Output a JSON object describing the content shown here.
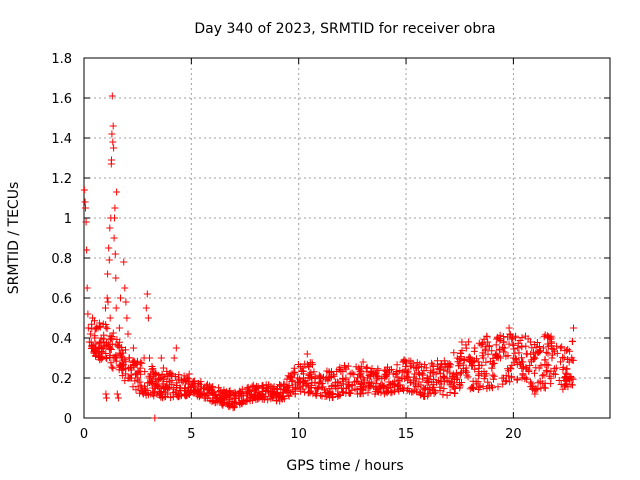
{
  "chart_data": {
    "type": "scatter",
    "title": "Day 340 of 2023, SRMTID for receiver obra",
    "xlabel": "GPS time / hours",
    "ylabel": "SRMTID / TECUs",
    "xlim": [
      0,
      24.5
    ],
    "ylim": [
      0,
      1.8
    ],
    "xticks": [
      0,
      5,
      10,
      15,
      20
    ],
    "xtick_labels": [
      "0",
      "5",
      "10",
      "15",
      "20"
    ],
    "yticks": [
      0,
      0.2,
      0.4,
      0.6,
      0.8,
      1,
      1.2,
      1.4,
      1.6,
      1.8
    ],
    "ytick_labels": [
      "0",
      "0.2",
      "0.4",
      "0.6",
      "0.8",
      "1",
      "1.2",
      "1.4",
      "1.6",
      "1.8"
    ],
    "grid": true,
    "marker": "+",
    "color": "#ff0000",
    "series": [
      {
        "name": "SRMTID",
        "points": [
          [
            0.02,
            1.14
          ],
          [
            0.05,
            1.08
          ],
          [
            0.07,
            1.05
          ],
          [
            0.1,
            0.98
          ],
          [
            0.12,
            0.84
          ],
          [
            0.15,
            0.65
          ],
          [
            0.18,
            0.52
          ],
          [
            0.2,
            0.45
          ],
          [
            0.25,
            0.38
          ],
          [
            0.3,
            0.42
          ],
          [
            0.35,
            0.36
          ],
          [
            0.4,
            0.5
          ],
          [
            0.45,
            0.33
          ],
          [
            0.5,
            0.4
          ],
          [
            0.55,
            0.37
          ],
          [
            0.6,
            0.32
          ],
          [
            0.65,
            0.45
          ],
          [
            0.7,
            0.35
          ],
          [
            0.75,
            0.38
          ],
          [
            0.8,
            0.4
          ],
          [
            0.85,
            0.3
          ],
          [
            0.9,
            0.47
          ],
          [
            0.95,
            0.36
          ],
          [
            1.0,
            0.55
          ],
          [
            1.02,
            0.12
          ],
          [
            1.05,
            0.1
          ],
          [
            1.08,
            0.6
          ],
          [
            1.1,
            0.72
          ],
          [
            1.12,
            0.58
          ],
          [
            1.15,
            0.85
          ],
          [
            1.18,
            0.79
          ],
          [
            1.2,
            0.95
          ],
          [
            1.22,
            0.5
          ],
          [
            1.25,
            1.0
          ],
          [
            1.27,
            1.27
          ],
          [
            1.28,
            1.29
          ],
          [
            1.3,
            1.42
          ],
          [
            1.32,
            1.61
          ],
          [
            1.34,
            1.38
          ],
          [
            1.36,
            1.46
          ],
          [
            1.38,
            1.35
          ],
          [
            1.4,
            0.9
          ],
          [
            1.42,
            1.0
          ],
          [
            1.44,
            1.05
          ],
          [
            1.46,
            0.82
          ],
          [
            1.48,
            0.7
          ],
          [
            1.5,
            0.55
          ],
          [
            1.52,
            1.13
          ],
          [
            1.55,
            0.12
          ],
          [
            1.6,
            0.1
          ],
          [
            1.65,
            0.45
          ],
          [
            1.7,
            0.6
          ],
          [
            1.75,
            0.3
          ],
          [
            1.8,
            0.25
          ],
          [
            1.85,
            0.78
          ],
          [
            1.9,
            0.65
          ],
          [
            1.95,
            0.58
          ],
          [
            2.0,
            0.5
          ],
          [
            2.05,
            0.42
          ],
          [
            2.1,
            0.3
          ],
          [
            2.15,
            0.2
          ],
          [
            2.2,
            0.25
          ],
          [
            2.3,
            0.35
          ],
          [
            2.4,
            0.22
          ],
          [
            2.5,
            0.2
          ],
          [
            2.6,
            0.18
          ],
          [
            2.7,
            0.15
          ],
          [
            2.8,
            0.3
          ],
          [
            2.9,
            0.55
          ],
          [
            2.95,
            0.62
          ],
          [
            3.0,
            0.5
          ],
          [
            3.05,
            0.3
          ],
          [
            3.1,
            0.22
          ],
          [
            3.15,
            0.18
          ],
          [
            3.2,
            0.15
          ],
          [
            3.3,
            0.0
          ],
          [
            3.4,
            0.12
          ],
          [
            3.5,
            0.2
          ],
          [
            3.6,
            0.3
          ],
          [
            3.7,
            0.25
          ],
          [
            3.8,
            0.15
          ],
          [
            3.9,
            0.12
          ],
          [
            4.0,
            0.18
          ],
          [
            4.1,
            0.22
          ],
          [
            4.2,
            0.3
          ],
          [
            4.3,
            0.35
          ],
          [
            4.4,
            0.2
          ],
          [
            4.5,
            0.15
          ],
          [
            4.6,
            0.18
          ],
          [
            4.7,
            0.12
          ],
          [
            4.8,
            0.2
          ],
          [
            4.9,
            0.22
          ],
          [
            5.0,
            0.16
          ],
          [
            5.2,
            0.14
          ],
          [
            5.4,
            0.12
          ],
          [
            5.6,
            0.1
          ],
          [
            5.8,
            0.14
          ],
          [
            6.0,
            0.12
          ],
          [
            6.2,
            0.08
          ],
          [
            6.4,
            0.1
          ],
          [
            6.6,
            0.12
          ],
          [
            6.8,
            0.06
          ],
          [
            7.0,
            0.08
          ],
          [
            7.2,
            0.1
          ],
          [
            7.4,
            0.12
          ],
          [
            7.6,
            0.15
          ],
          [
            7.8,
            0.12
          ],
          [
            8.0,
            0.14
          ],
          [
            8.2,
            0.12
          ],
          [
            8.4,
            0.1
          ],
          [
            8.6,
            0.13
          ],
          [
            8.8,
            0.15
          ],
          [
            9.0,
            0.12
          ],
          [
            9.2,
            0.1
          ],
          [
            9.4,
            0.14
          ],
          [
            9.6,
            0.2
          ],
          [
            9.8,
            0.22
          ],
          [
            10.0,
            0.18
          ],
          [
            10.2,
            0.25
          ],
          [
            10.4,
            0.32
          ],
          [
            10.6,
            0.2
          ],
          [
            10.8,
            0.15
          ],
          [
            11.0,
            0.18
          ],
          [
            11.2,
            0.14
          ],
          [
            11.4,
            0.2
          ],
          [
            11.6,
            0.16
          ],
          [
            11.8,
            0.18
          ],
          [
            12.0,
            0.15
          ],
          [
            12.2,
            0.2
          ],
          [
            12.4,
            0.22
          ],
          [
            12.6,
            0.18
          ],
          [
            12.8,
            0.25
          ],
          [
            13.0,
            0.28
          ],
          [
            13.2,
            0.2
          ],
          [
            13.4,
            0.18
          ],
          [
            13.6,
            0.22
          ],
          [
            13.8,
            0.15
          ],
          [
            14.0,
            0.2
          ],
          [
            14.2,
            0.18
          ],
          [
            14.4,
            0.22
          ],
          [
            14.6,
            0.16
          ],
          [
            14.8,
            0.2
          ],
          [
            15.0,
            0.24
          ],
          [
            15.2,
            0.26
          ],
          [
            15.4,
            0.22
          ],
          [
            15.6,
            0.18
          ],
          [
            15.8,
            0.15
          ],
          [
            16.0,
            0.2
          ],
          [
            16.2,
            0.18
          ],
          [
            16.4,
            0.22
          ],
          [
            16.6,
            0.25
          ],
          [
            16.8,
            0.2
          ],
          [
            17.0,
            0.18
          ],
          [
            17.2,
            0.22
          ],
          [
            17.4,
            0.2
          ],
          [
            17.6,
            0.38
          ],
          [
            17.8,
            0.25
          ],
          [
            18.0,
            0.3
          ],
          [
            18.2,
            0.35
          ],
          [
            18.4,
            0.22
          ],
          [
            18.6,
            0.3
          ],
          [
            18.8,
            0.38
          ],
          [
            19.0,
            0.25
          ],
          [
            19.2,
            0.32
          ],
          [
            19.4,
            0.3
          ],
          [
            19.6,
            0.35
          ],
          [
            19.8,
            0.45
          ],
          [
            20.0,
            0.3
          ],
          [
            20.2,
            0.35
          ],
          [
            20.4,
            0.28
          ],
          [
            20.6,
            0.32
          ],
          [
            20.8,
            0.38
          ],
          [
            21.0,
            0.12
          ],
          [
            21.2,
            0.25
          ],
          [
            21.4,
            0.35
          ],
          [
            21.6,
            0.4
          ],
          [
            21.8,
            0.3
          ],
          [
            22.0,
            0.25
          ],
          [
            22.2,
            0.35
          ],
          [
            22.4,
            0.2
          ],
          [
            22.6,
            0.28
          ],
          [
            22.8,
            0.45
          ]
        ],
        "envelope": [
          [
            0.3,
            0.3,
            0.5
          ],
          [
            0.6,
            0.28,
            0.48
          ],
          [
            0.9,
            0.3,
            0.5
          ],
          [
            2.2,
            0.15,
            0.3
          ],
          [
            2.6,
            0.12,
            0.28
          ],
          [
            3.5,
            0.1,
            0.25
          ],
          [
            4.5,
            0.1,
            0.22
          ],
          [
            5.0,
            0.12,
            0.2
          ],
          [
            5.5,
            0.1,
            0.18
          ],
          [
            6.0,
            0.08,
            0.16
          ],
          [
            6.5,
            0.06,
            0.15
          ],
          [
            7.0,
            0.05,
            0.14
          ],
          [
            7.5,
            0.08,
            0.16
          ],
          [
            8.0,
            0.09,
            0.17
          ],
          [
            8.5,
            0.09,
            0.17
          ],
          [
            9.0,
            0.08,
            0.16
          ],
          [
            9.5,
            0.1,
            0.22
          ],
          [
            10.0,
            0.12,
            0.28
          ],
          [
            10.5,
            0.12,
            0.3
          ],
          [
            11.0,
            0.11,
            0.24
          ],
          [
            11.5,
            0.1,
            0.24
          ],
          [
            12.0,
            0.11,
            0.26
          ],
          [
            12.5,
            0.12,
            0.27
          ],
          [
            13.0,
            0.12,
            0.28
          ],
          [
            13.5,
            0.12,
            0.26
          ],
          [
            14.0,
            0.12,
            0.26
          ],
          [
            14.5,
            0.13,
            0.26
          ],
          [
            15.0,
            0.14,
            0.3
          ],
          [
            15.5,
            0.12,
            0.28
          ],
          [
            16.0,
            0.1,
            0.28
          ],
          [
            16.5,
            0.1,
            0.3
          ],
          [
            17.0,
            0.11,
            0.3
          ],
          [
            17.5,
            0.13,
            0.36
          ],
          [
            18.0,
            0.13,
            0.4
          ],
          [
            18.5,
            0.14,
            0.42
          ],
          [
            19.0,
            0.15,
            0.4
          ],
          [
            19.5,
            0.16,
            0.42
          ],
          [
            20.0,
            0.18,
            0.42
          ],
          [
            20.5,
            0.2,
            0.42
          ],
          [
            21.0,
            0.12,
            0.38
          ],
          [
            21.5,
            0.15,
            0.42
          ],
          [
            22.0,
            0.15,
            0.4
          ],
          [
            22.5,
            0.14,
            0.38
          ],
          [
            22.8,
            0.16,
            0.42
          ]
        ]
      }
    ]
  }
}
